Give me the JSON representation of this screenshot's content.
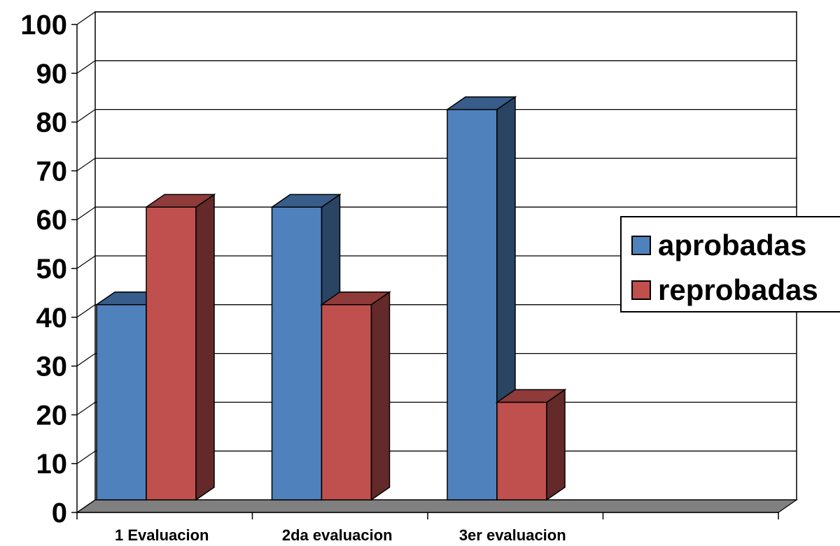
{
  "chart_data": {
    "type": "bar",
    "style": "3d-clustered",
    "categories": [
      "1 Evaluacion",
      "2da evaluacion",
      "3er evaluacion",
      ""
    ],
    "series": [
      {
        "name": "aprobadas",
        "values": [
          40,
          60,
          80,
          null
        ],
        "color": "#4F81BD",
        "side_color": "#2A4464",
        "top_color": "#385D8A"
      },
      {
        "name": "reprobadas",
        "values": [
          60,
          40,
          20,
          null
        ],
        "color": "#C0504D",
        "side_color": "#632A29",
        "top_color": "#8E3B39"
      }
    ],
    "ylim": [
      0,
      100
    ],
    "yticks": [
      0,
      10,
      20,
      30,
      40,
      50,
      60,
      70,
      80,
      90,
      100
    ],
    "grid": true,
    "floor_color": "#808080",
    "legend_position": "right",
    "title": "",
    "xlabel": "",
    "ylabel": ""
  }
}
